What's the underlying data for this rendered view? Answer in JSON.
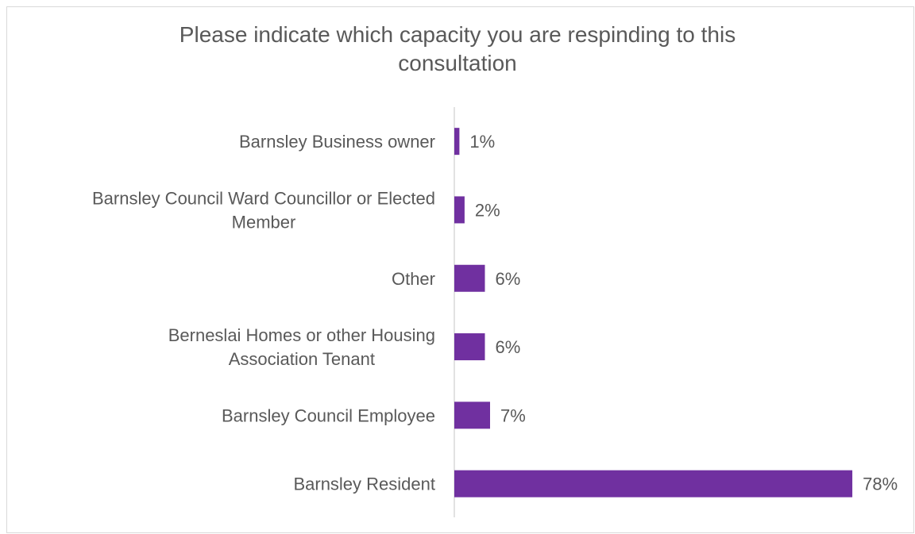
{
  "chart_data": {
    "type": "bar",
    "orientation": "horizontal",
    "title": "Please indicate which capacity you are respinding to this consultation",
    "title_lines": [
      "Please indicate which capacity you are respinding to this",
      "consultation"
    ],
    "categories": [
      [
        "Barnsley Business owner"
      ],
      [
        "Barnsley Council Ward Councillor or Elected",
        "Member"
      ],
      [
        "Other"
      ],
      [
        "Berneslai Homes or other Housing",
        "Association Tenant"
      ],
      [
        "Barnsley Council Employee"
      ],
      [
        "Barnsley Resident"
      ]
    ],
    "values": [
      1,
      2,
      6,
      6,
      7,
      78
    ],
    "data_labels": [
      "1%",
      "2%",
      "6%",
      "6%",
      "7%",
      "78%"
    ],
    "xlim": [
      0,
      80
    ],
    "unit": "%",
    "bar_color": "#7030a0",
    "legend": "none",
    "grid": false
  }
}
